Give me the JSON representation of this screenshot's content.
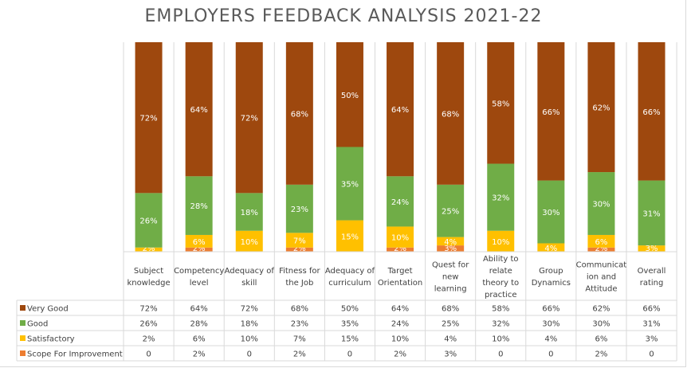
{
  "chart_data": {
    "type": "bar",
    "stacked": true,
    "percent_stacked": true,
    "title": "EMPLOYERS FEEDBACK ANALYSIS 2021-22",
    "xlabel": "",
    "ylabel": "",
    "ylim": [
      0,
      100
    ],
    "legend": "table-left",
    "data_table": true,
    "categories": [
      "Subject knowledge",
      "Competency level",
      "Adequacy of skill",
      "Fitness for the Job",
      "Adequacy of curriculum",
      "Target Orientation",
      "Quest for new learning",
      "Ability to relate theory to practice",
      "Group Dynamics",
      "Communication and Attitude",
      "Overall rating"
    ],
    "category_lines": [
      [
        "Subject",
        "knowledge"
      ],
      [
        "Competency",
        "level"
      ],
      [
        "Adequacy of",
        "skill"
      ],
      [
        "Fitness for",
        "the Job"
      ],
      [
        "Adequacy of",
        "curriculum"
      ],
      [
        "Target",
        "Orientation"
      ],
      [
        "Quest for",
        "new",
        "learning"
      ],
      [
        "Ability to",
        "relate",
        "theory to",
        "practice"
      ],
      [
        "Group",
        "Dynamics"
      ],
      [
        "Communicat",
        "ion and",
        "Attitude"
      ],
      [
        "Overall",
        "rating"
      ]
    ],
    "series": [
      {
        "name": "Scope For Improvement",
        "color": "#ED7D31",
        "values": [
          0,
          2,
          0,
          2,
          0,
          2,
          3,
          0,
          0,
          2,
          0
        ],
        "labels": [
          "0",
          "2%",
          "0",
          "2%",
          "0",
          "2%",
          "3%",
          "0",
          "0",
          "2%",
          "0"
        ]
      },
      {
        "name": "Satisfactory",
        "color": "#FFC000",
        "values": [
          2,
          6,
          10,
          7,
          15,
          10,
          4,
          10,
          4,
          6,
          3
        ],
        "labels": [
          "2%",
          "6%",
          "10%",
          "7%",
          "15%",
          "10%",
          "4%",
          "10%",
          "4%",
          "6%",
          "3%"
        ]
      },
      {
        "name": "Good",
        "color": "#70AD47",
        "values": [
          26,
          28,
          18,
          23,
          35,
          24,
          25,
          32,
          30,
          30,
          31
        ],
        "labels": [
          "26%",
          "28%",
          "18%",
          "23%",
          "35%",
          "24%",
          "25%",
          "32%",
          "30%",
          "30%",
          "31%"
        ]
      },
      {
        "name": "Very Good",
        "color": "#9E480E",
        "values": [
          72,
          64,
          72,
          68,
          50,
          64,
          68,
          58,
          66,
          62,
          66
        ],
        "labels": [
          "72%",
          "64%",
          "72%",
          "68%",
          "50%",
          "64%",
          "68%",
          "58%",
          "66%",
          "62%",
          "66%"
        ]
      }
    ],
    "table_row_order": [
      "Very Good",
      "Good",
      "Satisfactory",
      "Scope For Improvement"
    ]
  }
}
